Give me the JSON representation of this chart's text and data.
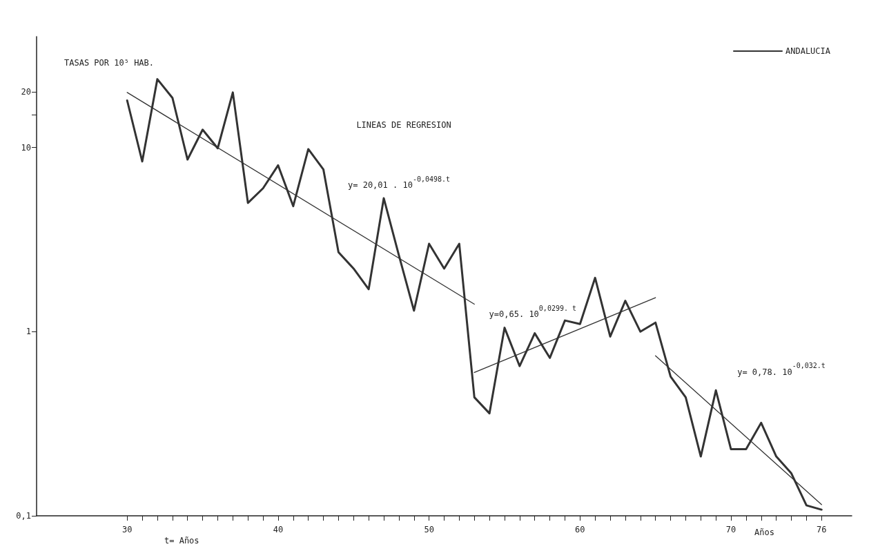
{
  "chart_data": {
    "type": "line",
    "ylabel": "TASAS POR 10⁵ HAB.",
    "xlabel": "t= Años",
    "x": [
      30,
      31,
      32,
      33,
      34,
      35,
      36,
      37,
      38,
      39,
      40,
      41,
      42,
      43,
      44,
      45,
      46,
      47,
      48,
      49,
      50,
      51,
      52,
      53,
      54,
      55,
      56,
      57,
      58,
      59,
      60,
      61,
      62,
      63,
      64,
      65,
      66,
      67,
      68,
      69,
      70,
      71,
      72,
      73,
      74,
      75,
      76
    ],
    "series": [
      {
        "name": "ANDALUCIA",
        "color": "#333333",
        "values": [
          18.0,
          8.4,
          23.5,
          18.6,
          8.6,
          12.5,
          9.9,
          19.9,
          5.0,
          6.0,
          8.0,
          4.8,
          9.8,
          7.6,
          2.7,
          2.2,
          1.7,
          5.3,
          2.6,
          1.3,
          3.0,
          2.2,
          3.0,
          0.44,
          0.36,
          1.05,
          0.65,
          0.98,
          0.72,
          1.15,
          1.1,
          1.96,
          0.94,
          1.47,
          1.0,
          1.12,
          0.57,
          0.44,
          0.21,
          0.48,
          0.23,
          0.23,
          0.32,
          0.21,
          0.17,
          0.114,
          0.108
        ]
      },
      {
        "type": "line",
        "color": "#333333",
        "x": [
          30,
          53
        ],
        "values": [
          19.9,
          1.41
        ]
      },
      {
        "type": "line",
        "color": "#333333",
        "x": [
          53,
          65
        ],
        "values": [
          0.6,
          1.53
        ]
      },
      {
        "type": "line",
        "color": "#333333",
        "x": [
          65,
          76
        ],
        "values": [
          0.74,
          0.115
        ]
      }
    ],
    "xlim": [
      24,
      78
    ],
    "ylim": [
      0.1,
      40
    ],
    "log": "y",
    "xticks": [
      {
        "value": 30,
        "label": "30"
      },
      {
        "value": 31,
        "label": null
      },
      {
        "value": 32,
        "label": null
      },
      {
        "value": 33,
        "label": null
      },
      {
        "value": 34,
        "label": null
      },
      {
        "value": 35,
        "label": null
      },
      {
        "value": 36,
        "label": null
      },
      {
        "value": 37,
        "label": null
      },
      {
        "value": 38,
        "label": null
      },
      {
        "value": 39,
        "label": null
      },
      {
        "value": 40,
        "label": "40"
      },
      {
        "value": 41,
        "label": null
      },
      {
        "value": 42,
        "label": null
      },
      {
        "value": 43,
        "label": null
      },
      {
        "value": 44,
        "label": null
      },
      {
        "value": 45,
        "label": null
      },
      {
        "value": 46,
        "label": null
      },
      {
        "value": 47,
        "label": null
      },
      {
        "value": 48,
        "label": null
      },
      {
        "value": 49,
        "label": null
      },
      {
        "value": 50,
        "label": "50"
      },
      {
        "value": 51,
        "label": null
      },
      {
        "value": 52,
        "label": null
      },
      {
        "value": 53,
        "label": null
      },
      {
        "value": 54,
        "label": null
      },
      {
        "value": 55,
        "label": null
      },
      {
        "value": 56,
        "label": null
      },
      {
        "value": 57,
        "label": null
      },
      {
        "value": 58,
        "label": null
      },
      {
        "value": 59,
        "label": null
      },
      {
        "value": 60,
        "label": "60"
      },
      {
        "value": 61,
        "label": null
      },
      {
        "value": 62,
        "label": null
      },
      {
        "value": 63,
        "label": null
      },
      {
        "value": 64,
        "label": null
      },
      {
        "value": 65,
        "label": null
      },
      {
        "value": 66,
        "label": null
      },
      {
        "value": 67,
        "label": null
      },
      {
        "value": 68,
        "label": null
      },
      {
        "value": 69,
        "label": null
      },
      {
        "value": 70,
        "label": "70"
      },
      {
        "value": 71,
        "label": null
      },
      {
        "value": 72,
        "label": null
      },
      {
        "value": 73,
        "label": null
      },
      {
        "value": 74,
        "label": null
      },
      {
        "value": 75,
        "label": null
      },
      {
        "value": 76,
        "label": "76"
      }
    ],
    "yticks": [
      {
        "value": 0.1,
        "label": "0,1"
      },
      1,
      10,
      {
        "value": 15,
        "label": null
      },
      20
    ],
    "marker": "none",
    "grid": false,
    "legend": "top right",
    "annotations": [
      "LINEAS DE REGRESION",
      "Años",
      "y= 20,01 . 10$^{-0,0498.t}$",
      "y=0,65. 10$^{0,0299. t}$",
      "y= 0,78. 10$^{-0,032.t}$"
    ]
  }
}
